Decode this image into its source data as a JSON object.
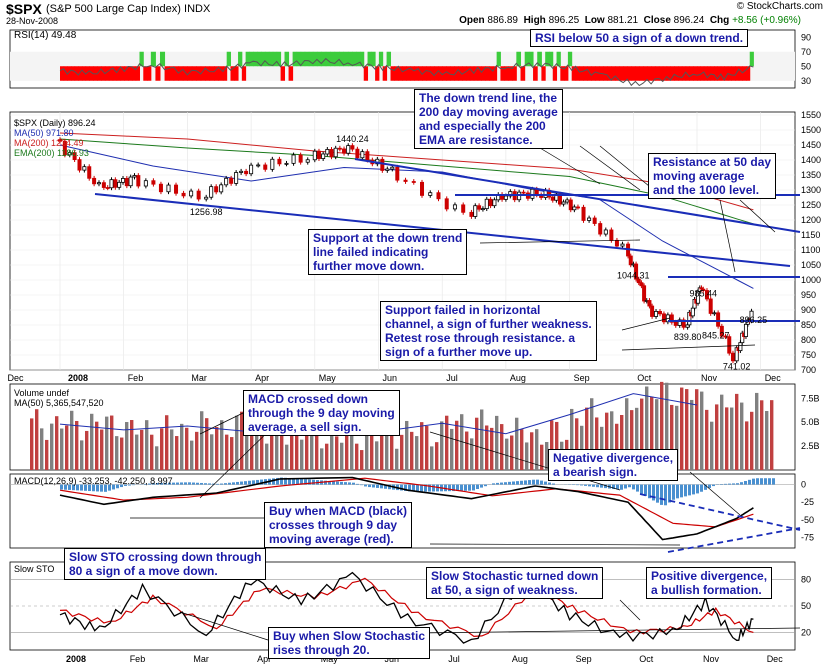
{
  "header": {
    "symbol": "$SPX",
    "name": "(S&P 500 Large Cap Index)",
    "exchange": "INDX",
    "date": "28-Nov-2008",
    "brand": "© StockCharts.com",
    "open_label": "Open",
    "open": "886.89",
    "high_label": "High",
    "high": "896.25",
    "low_label": "Low",
    "low": "881.21",
    "close_label": "Close",
    "close": "896.24",
    "chg_label": "Chg",
    "chg": "+8.56 (+0.96%)"
  },
  "colors": {
    "price_up": "#000000",
    "price_down": "#cc0000",
    "ma50": "#1f2fb0",
    "ma200": "#cc2020",
    "ema200": "#1c7a1c",
    "rsi_low": "#ff0000",
    "rsi_high": "#3ccc3c",
    "volume_up": "#c04040",
    "volume_down": "#808080",
    "trend_line": "#1a2db8",
    "annotation_text": "#1a1aa8"
  },
  "chart_data": [
    {
      "type": "line",
      "panel": "rsi",
      "label": "RSI(14) 49.48",
      "ylim": [
        20,
        100
      ],
      "yticks": [
        "90",
        "70",
        "50",
        "30"
      ],
      "overbought": 70,
      "oversold": 30,
      "series": [
        {
          "name": "RSI(14)",
          "x": [
            "Jan 1",
            "Jan 15",
            "Jan 30",
            "Feb 14",
            "Mar 1",
            "Mar 18",
            "Apr 2",
            "Apr 17",
            "May 2",
            "May 19",
            "Jun 3",
            "Jun 18",
            "Jul 3",
            "Jul 18",
            "Aug 2",
            "Aug 18",
            "Sep 2",
            "Sep 17",
            "Oct 2",
            "Oct 17",
            "Nov 1",
            "Nov 14",
            "Nov 28"
          ],
          "values": [
            44,
            40,
            46,
            52,
            42,
            45,
            55,
            52,
            58,
            54,
            48,
            44,
            39,
            45,
            49,
            53,
            47,
            38,
            25,
            34,
            40,
            35,
            49
          ]
        }
      ]
    },
    {
      "type": "line",
      "panel": "price",
      "legend": [
        "$SPX (Daily) 896.24",
        "MA(50) 971.80",
        "MA(200) 1234.49",
        "EMA(200) 1186.93"
      ],
      "ylim": [
        700,
        1560
      ],
      "yticks": [
        "1550",
        "1500",
        "1450",
        "1400",
        "1350",
        "1300",
        "1250",
        "1200",
        "1150",
        "1100",
        "1050",
        "1000",
        "950",
        "900",
        "850",
        "800",
        "750",
        "700"
      ],
      "xticks": [
        "Dec",
        "2008",
        "Feb",
        "Mar",
        "Apr",
        "May",
        "Jun",
        "Jul",
        "Aug",
        "Sep",
        "Oct",
        "Nov",
        "Dec"
      ],
      "series": [
        {
          "name": "$SPX",
          "x": [
            "Jan 1",
            "Jan 22",
            "Feb 8",
            "Mar 10",
            "Apr 1",
            "May 1",
            "May 19",
            "Jun 10",
            "Jul 15",
            "Aug 1",
            "Aug 20",
            "Sep 5",
            "Sep 29",
            "Oct 10",
            "Oct 27",
            "Nov 4",
            "Nov 20",
            "Nov 28"
          ],
          "values": [
            1468,
            1310,
            1336,
            1274,
            1370,
            1410,
            1440,
            1360,
            1220,
            1280,
            1290,
            1245,
            1106,
            900,
            845,
            985,
            741,
            896
          ]
        },
        {
          "name": "MA(50)",
          "x": [
            "Jan 1",
            "Feb 15",
            "Apr 1",
            "May 15",
            "Jul 1",
            "Aug 15",
            "Sep 15",
            "Oct 15",
            "Nov 28"
          ],
          "values": [
            1450,
            1380,
            1330,
            1375,
            1360,
            1300,
            1270,
            1130,
            972
          ]
        },
        {
          "name": "MA(200)",
          "x": [
            "Jan 1",
            "Mar 1",
            "May 1",
            "Jul 1",
            "Sep 1",
            "Oct 15",
            "Nov 28"
          ],
          "values": [
            1490,
            1470,
            1430,
            1400,
            1370,
            1320,
            1234
          ]
        },
        {
          "name": "EMA(200)",
          "x": [
            "Jan 1",
            "Mar 1",
            "May 1",
            "Jul 1",
            "Sep 1",
            "Oct 15",
            "Nov 28"
          ],
          "values": [
            1470,
            1440,
            1415,
            1380,
            1345,
            1280,
            1187
          ]
        }
      ],
      "data_labels": [
        {
          "x": "Mar 10",
          "y": 1256.98,
          "text": "1256.98"
        },
        {
          "x": "May 19",
          "y": 1440.24,
          "text": "1440.24"
        },
        {
          "x": "Oct 1",
          "y": 1044.31,
          "text": "1044.31"
        },
        {
          "x": "Nov 4",
          "y": 985.44,
          "text": "985.44"
        },
        {
          "x": "Oct 27",
          "y": 839.8,
          "text": "839.80"
        },
        {
          "x": "Nov 10",
          "y": 845.27,
          "text": "845.27"
        },
        {
          "x": "Nov 20",
          "y": 741.02,
          "text": "741.02"
        },
        {
          "x": "Nov 28",
          "y": 896.25,
          "text": "896.25"
        }
      ]
    },
    {
      "type": "bar",
      "panel": "volume",
      "legend": [
        "Volume undef",
        "MA(50) 5,365,547,520"
      ],
      "yticks": [
        "7.5B",
        "5.0B",
        "2.5B"
      ],
      "ylim": [
        0,
        9
      ],
      "x": [
        "Jan",
        "Feb",
        "Mar",
        "Apr",
        "May",
        "Jun",
        "Jul",
        "Aug",
        "Sep",
        "Oct",
        "Nov"
      ],
      "values": [
        4.8,
        4.2,
        4.6,
        4.0,
        3.6,
        4.0,
        4.9,
        3.8,
        5.8,
        8.0,
        6.8
      ]
    },
    {
      "type": "line",
      "panel": "macd",
      "legend": [
        "MACD(12,26,9) -33.253, -42.250, 8.997"
      ],
      "yticks": [
        "0",
        "-25",
        "-50",
        "-75"
      ],
      "ylim": [
        -90,
        15
      ],
      "series": [
        {
          "name": "MACD",
          "x": [
            "Jan 1",
            "Jan 22",
            "Feb 15",
            "Mar 15",
            "Apr 15",
            "May 19",
            "Jun 15",
            "Jul 15",
            "Aug 15",
            "Sep 5",
            "Sep 29",
            "Oct 15",
            "Nov 1",
            "Nov 20",
            "Nov 28"
          ],
          "values": [
            -15,
            -28,
            -18,
            -12,
            8,
            10,
            -8,
            -20,
            -2,
            -10,
            -25,
            -78,
            -70,
            -48,
            -33
          ]
        },
        {
          "name": "Signal",
          "x": [
            "Jan 1",
            "Feb 1",
            "Mar 1",
            "Apr 15",
            "May 25",
            "Jun 25",
            "Jul 25",
            "Aug 25",
            "Sep 25",
            "Oct 20",
            "Nov 10",
            "Nov 28"
          ],
          "values": [
            -8,
            -22,
            -18,
            -2,
            9,
            -2,
            -16,
            -6,
            -15,
            -55,
            -60,
            -42
          ]
        }
      ]
    },
    {
      "type": "line",
      "panel": "slow_sto",
      "legend": [
        "Slow STO"
      ],
      "yticks": [
        "80",
        "50",
        "20"
      ],
      "ylim": [
        0,
        100
      ],
      "series": [
        {
          "name": "%K",
          "x": [
            "Jan 1",
            "Jan 20",
            "Feb 10",
            "Mar 10",
            "Apr 1",
            "Apr 25",
            "May 19",
            "Jun 15",
            "Jul 15",
            "Aug 10",
            "Sep 1",
            "Sep 25",
            "Oct 20",
            "Nov 5",
            "Nov 20",
            "Nov 28"
          ],
          "values": [
            40,
            22,
            70,
            18,
            80,
            55,
            85,
            35,
            10,
            80,
            40,
            15,
            20,
            55,
            12,
            35
          ]
        },
        {
          "name": "%D",
          "x": [
            "Jan 1",
            "Jan 25",
            "Feb 15",
            "Mar 15",
            "Apr 5",
            "May 1",
            "May 25",
            "Jun 20",
            "Jul 20",
            "Aug 15",
            "Sep 5",
            "Sep 30",
            "Oct 25",
            "Nov 10",
            "Nov 28"
          ],
          "values": [
            45,
            30,
            60,
            25,
            70,
            60,
            80,
            40,
            15,
            70,
            45,
            20,
            25,
            45,
            20
          ]
        }
      ]
    }
  ],
  "annotations": {
    "rsi": "RSI below 50 a sign of a down trend.",
    "resistance_trend": [
      "The down trend line, the",
      "200 day moving average",
      "and especially the 200",
      "EMA are resistance."
    ],
    "resistance_50": [
      "Resistance at 50 day",
      "moving average",
      "and the 1000 level."
    ],
    "support_failed_trend": [
      "Support at the down trend",
      "line failed indicating",
      "further move down."
    ],
    "support_failed_channel": [
      "Support failed in horizontal",
      "channel, a sign of further weakness.",
      "Retest rose through resistance. a",
      "sign of a further move up."
    ],
    "macd_sell": [
      "MACD crossed down",
      "through the 9 day moving",
      "average, a sell sign."
    ],
    "negative_divergence": [
      "Negative divergence,",
      "a bearish sign."
    ],
    "macd_buy": [
      "Buy when MACD (black)",
      "crosses through 9 day",
      "moving average (red)."
    ],
    "sto_down": [
      "Slow STO crossing down through",
      "80 a sign of a move down."
    ],
    "sto_weak": [
      "Slow Stochastic turned down",
      "at 50, a sign of weakness."
    ],
    "positive_divergence": [
      "Positive divergence,",
      "a bullish formation."
    ],
    "sto_buy": [
      "Buy when Slow Stochastic",
      "rises through 20."
    ]
  },
  "bottom_axis": [
    "2008",
    "Feb",
    "Mar",
    "Apr",
    "May",
    "Jun",
    "Jul",
    "Aug",
    "Sep",
    "Oct",
    "Nov",
    "Dec"
  ]
}
